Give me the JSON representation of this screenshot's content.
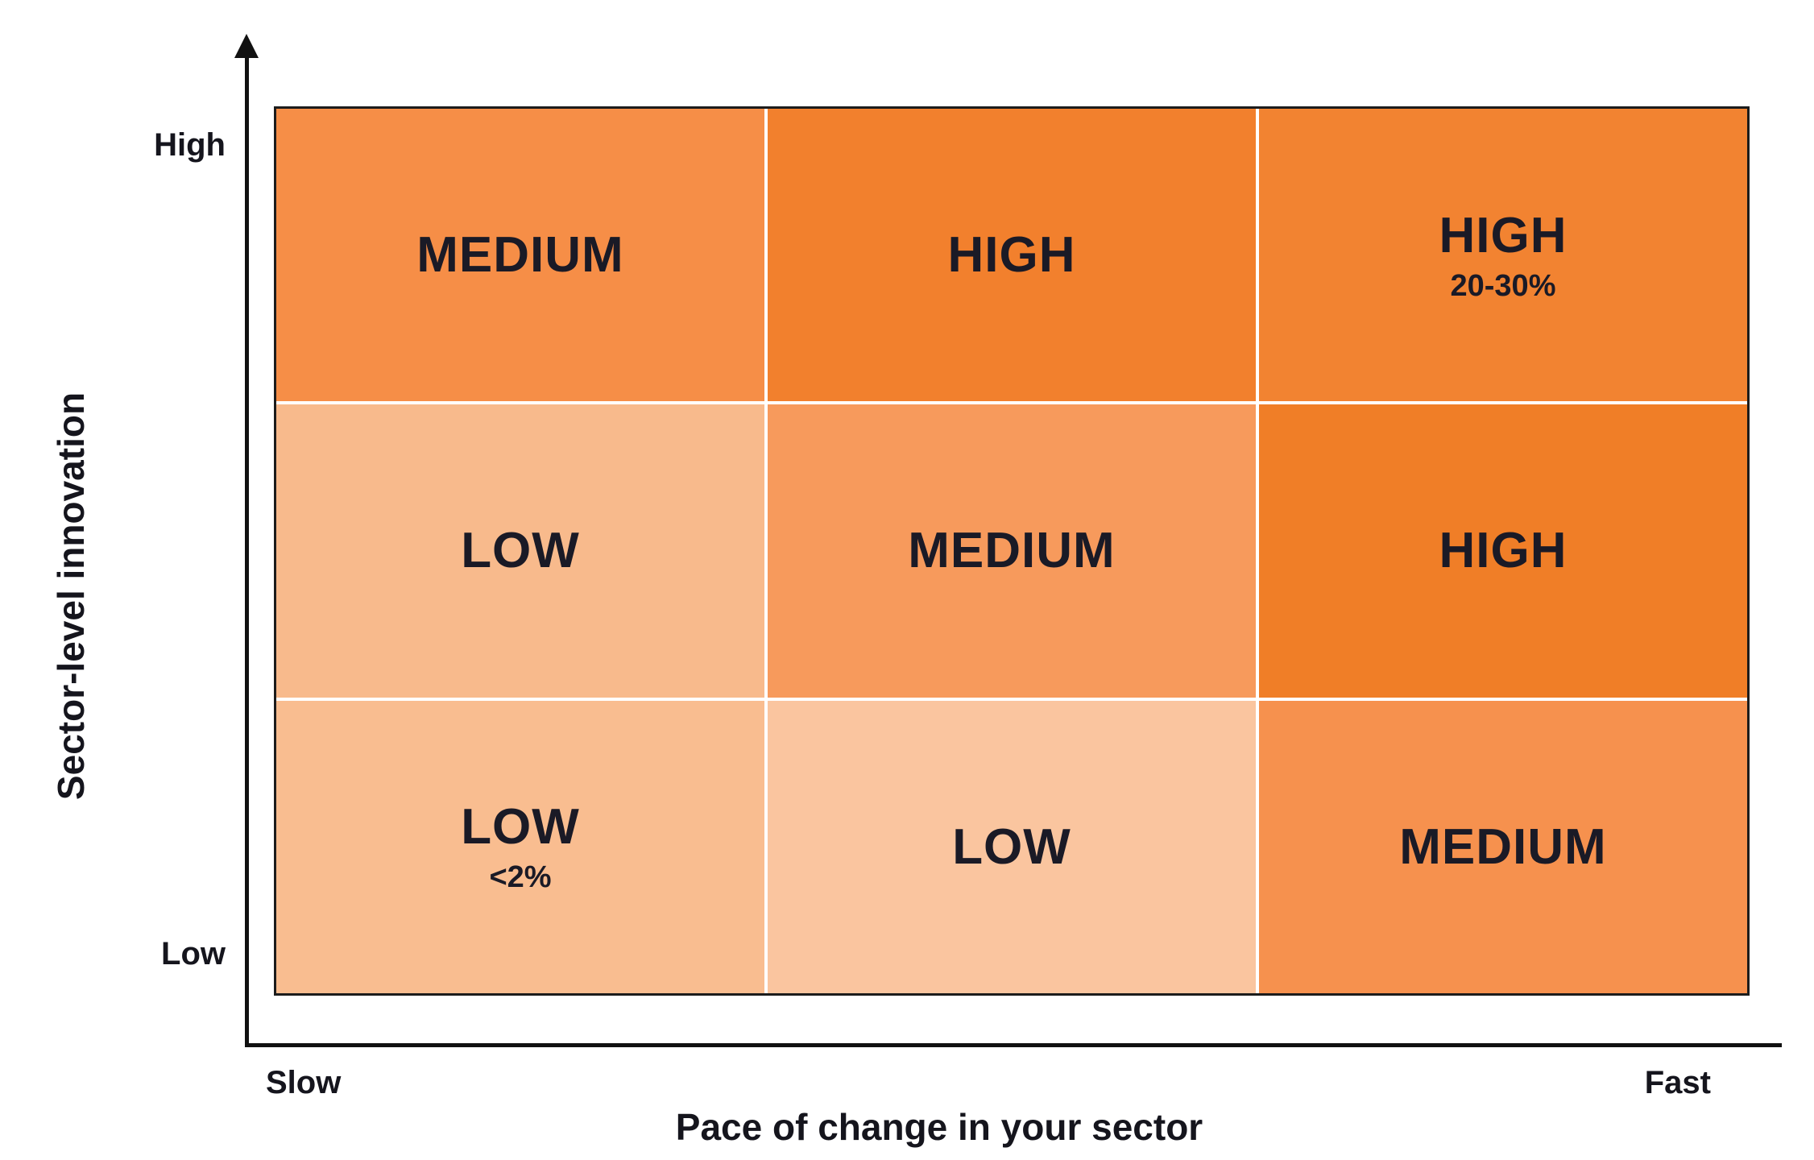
{
  "axes": {
    "y_title": "Sector-level innovation",
    "y_top_label": "High",
    "y_bottom_label": "Low",
    "x_title": "Pace of change in your sector",
    "x_left_label": "Slow",
    "x_right_label": "Fast"
  },
  "chart_data": {
    "type": "heatmap",
    "x_axis": "Pace of change in your sector",
    "x_range": [
      "Slow",
      "Fast"
    ],
    "y_axis": "Sector-level innovation",
    "y_range": [
      "Low",
      "High"
    ],
    "rows": [
      "high-innovation",
      "medium-innovation",
      "low-innovation"
    ],
    "cols": [
      "slow-pace",
      "medium-pace",
      "fast-pace"
    ],
    "cells": [
      {
        "id": "top-left",
        "row": "high-innovation",
        "col": "slow-pace",
        "label": "MEDIUM",
        "sub": "",
        "level": "medium",
        "color": "#F68E47"
      },
      {
        "id": "top-center",
        "row": "high-innovation",
        "col": "medium-pace",
        "label": "HIGH",
        "sub": "",
        "level": "high",
        "color": "#F2802D"
      },
      {
        "id": "top-right",
        "row": "high-innovation",
        "col": "fast-pace",
        "label": "HIGH",
        "sub": "20-30%",
        "level": "high",
        "color": "#F28331"
      },
      {
        "id": "middle-left",
        "row": "medium-innovation",
        "col": "slow-pace",
        "label": "LOW",
        "sub": "",
        "level": "low",
        "color": "#F8BA8C"
      },
      {
        "id": "middle-center",
        "row": "medium-innovation",
        "col": "medium-pace",
        "label": "MEDIUM",
        "sub": "",
        "level": "medium",
        "color": "#F79A5C"
      },
      {
        "id": "middle-right",
        "row": "medium-innovation",
        "col": "fast-pace",
        "label": "HIGH",
        "sub": "",
        "level": "high",
        "color": "#F07E27"
      },
      {
        "id": "bottom-left",
        "row": "low-innovation",
        "col": "slow-pace",
        "label": "LOW",
        "sub": "<2%",
        "level": "low",
        "color": "#F9BD90"
      },
      {
        "id": "bottom-center",
        "row": "low-innovation",
        "col": "medium-pace",
        "label": "LOW",
        "sub": "",
        "level": "low",
        "color": "#FAC59F"
      },
      {
        "id": "bottom-right",
        "row": "low-innovation",
        "col": "fast-pace",
        "label": "MEDIUM",
        "sub": "",
        "level": "medium",
        "color": "#F6914E"
      }
    ]
  },
  "colors": {
    "text": "#1A1A26",
    "axis": "#111111",
    "grid_line": "#FFFFFF",
    "border": "#1C1C1C",
    "background": "#FFFFFF"
  }
}
